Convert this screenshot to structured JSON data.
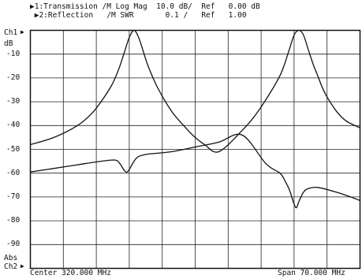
{
  "header": {
    "line1": "▶1:Transmission /M Log Mag  10.0 dB/  Ref   0.00 dB",
    "line2": " ▶2:Reflection   /M SWR       0.1 /   Ref   1.00"
  },
  "left_labels": {
    "ch1": "Ch1",
    "ch1_marker": "▶",
    "unit": "dB",
    "abs": "Abs",
    "ch2": "Ch2",
    "ch2_marker": "▶"
  },
  "footer": {
    "center": "Center 320.000 MHz",
    "span": "Span 70.000 MHz"
  },
  "chart_data": {
    "type": "line",
    "x_range_mhz": [
      285,
      355
    ],
    "ylim": [
      -100,
      0
    ],
    "y_ticks": [
      "-10",
      "-20",
      "-30",
      "-40",
      "-50",
      "-60",
      "-70",
      "-80",
      "-90"
    ],
    "grid": true,
    "series": [
      {
        "name": "1:Transmission",
        "x": [
          285,
          290,
          295,
          298,
          300,
          302,
          303,
          304,
          305,
          306,
          307,
          308,
          309,
          310,
          312,
          315,
          318,
          320,
          322,
          325,
          330,
          333,
          336,
          338,
          339,
          340,
          341,
          342,
          343,
          344,
          345,
          346,
          347,
          348,
          350,
          352,
          355
        ],
        "y": [
          -48,
          -45,
          -40,
          -35,
          -30,
          -24,
          -20,
          -15,
          -9,
          -3,
          0,
          -3,
          -9,
          -15,
          -24,
          -34,
          -41,
          -45,
          -48,
          -51,
          -42,
          -35,
          -26,
          -19,
          -14,
          -8,
          -2,
          0,
          -2,
          -8,
          -14,
          -19,
          -24,
          -28,
          -34,
          -38,
          -41
        ]
      },
      {
        "name": "2:Reflection",
        "x": [
          285,
          290,
          295,
          300,
          303,
          304,
          305,
          305.5,
          306,
          307,
          308,
          310,
          315,
          320,
          325,
          330,
          335,
          338,
          339,
          340,
          341,
          341.5,
          342,
          343,
          344,
          346,
          350,
          353,
          355
        ],
        "y": [
          -59.5,
          -58,
          -56.5,
          -55,
          -54.5,
          -56,
          -59,
          -59.5,
          -58.5,
          -55,
          -53,
          -52,
          -51,
          -49,
          -47,
          -44,
          -56,
          -60,
          -63,
          -67,
          -73,
          -74.5,
          -72,
          -68,
          -66.5,
          -66,
          -68,
          -70,
          -71.5
        ]
      }
    ]
  }
}
